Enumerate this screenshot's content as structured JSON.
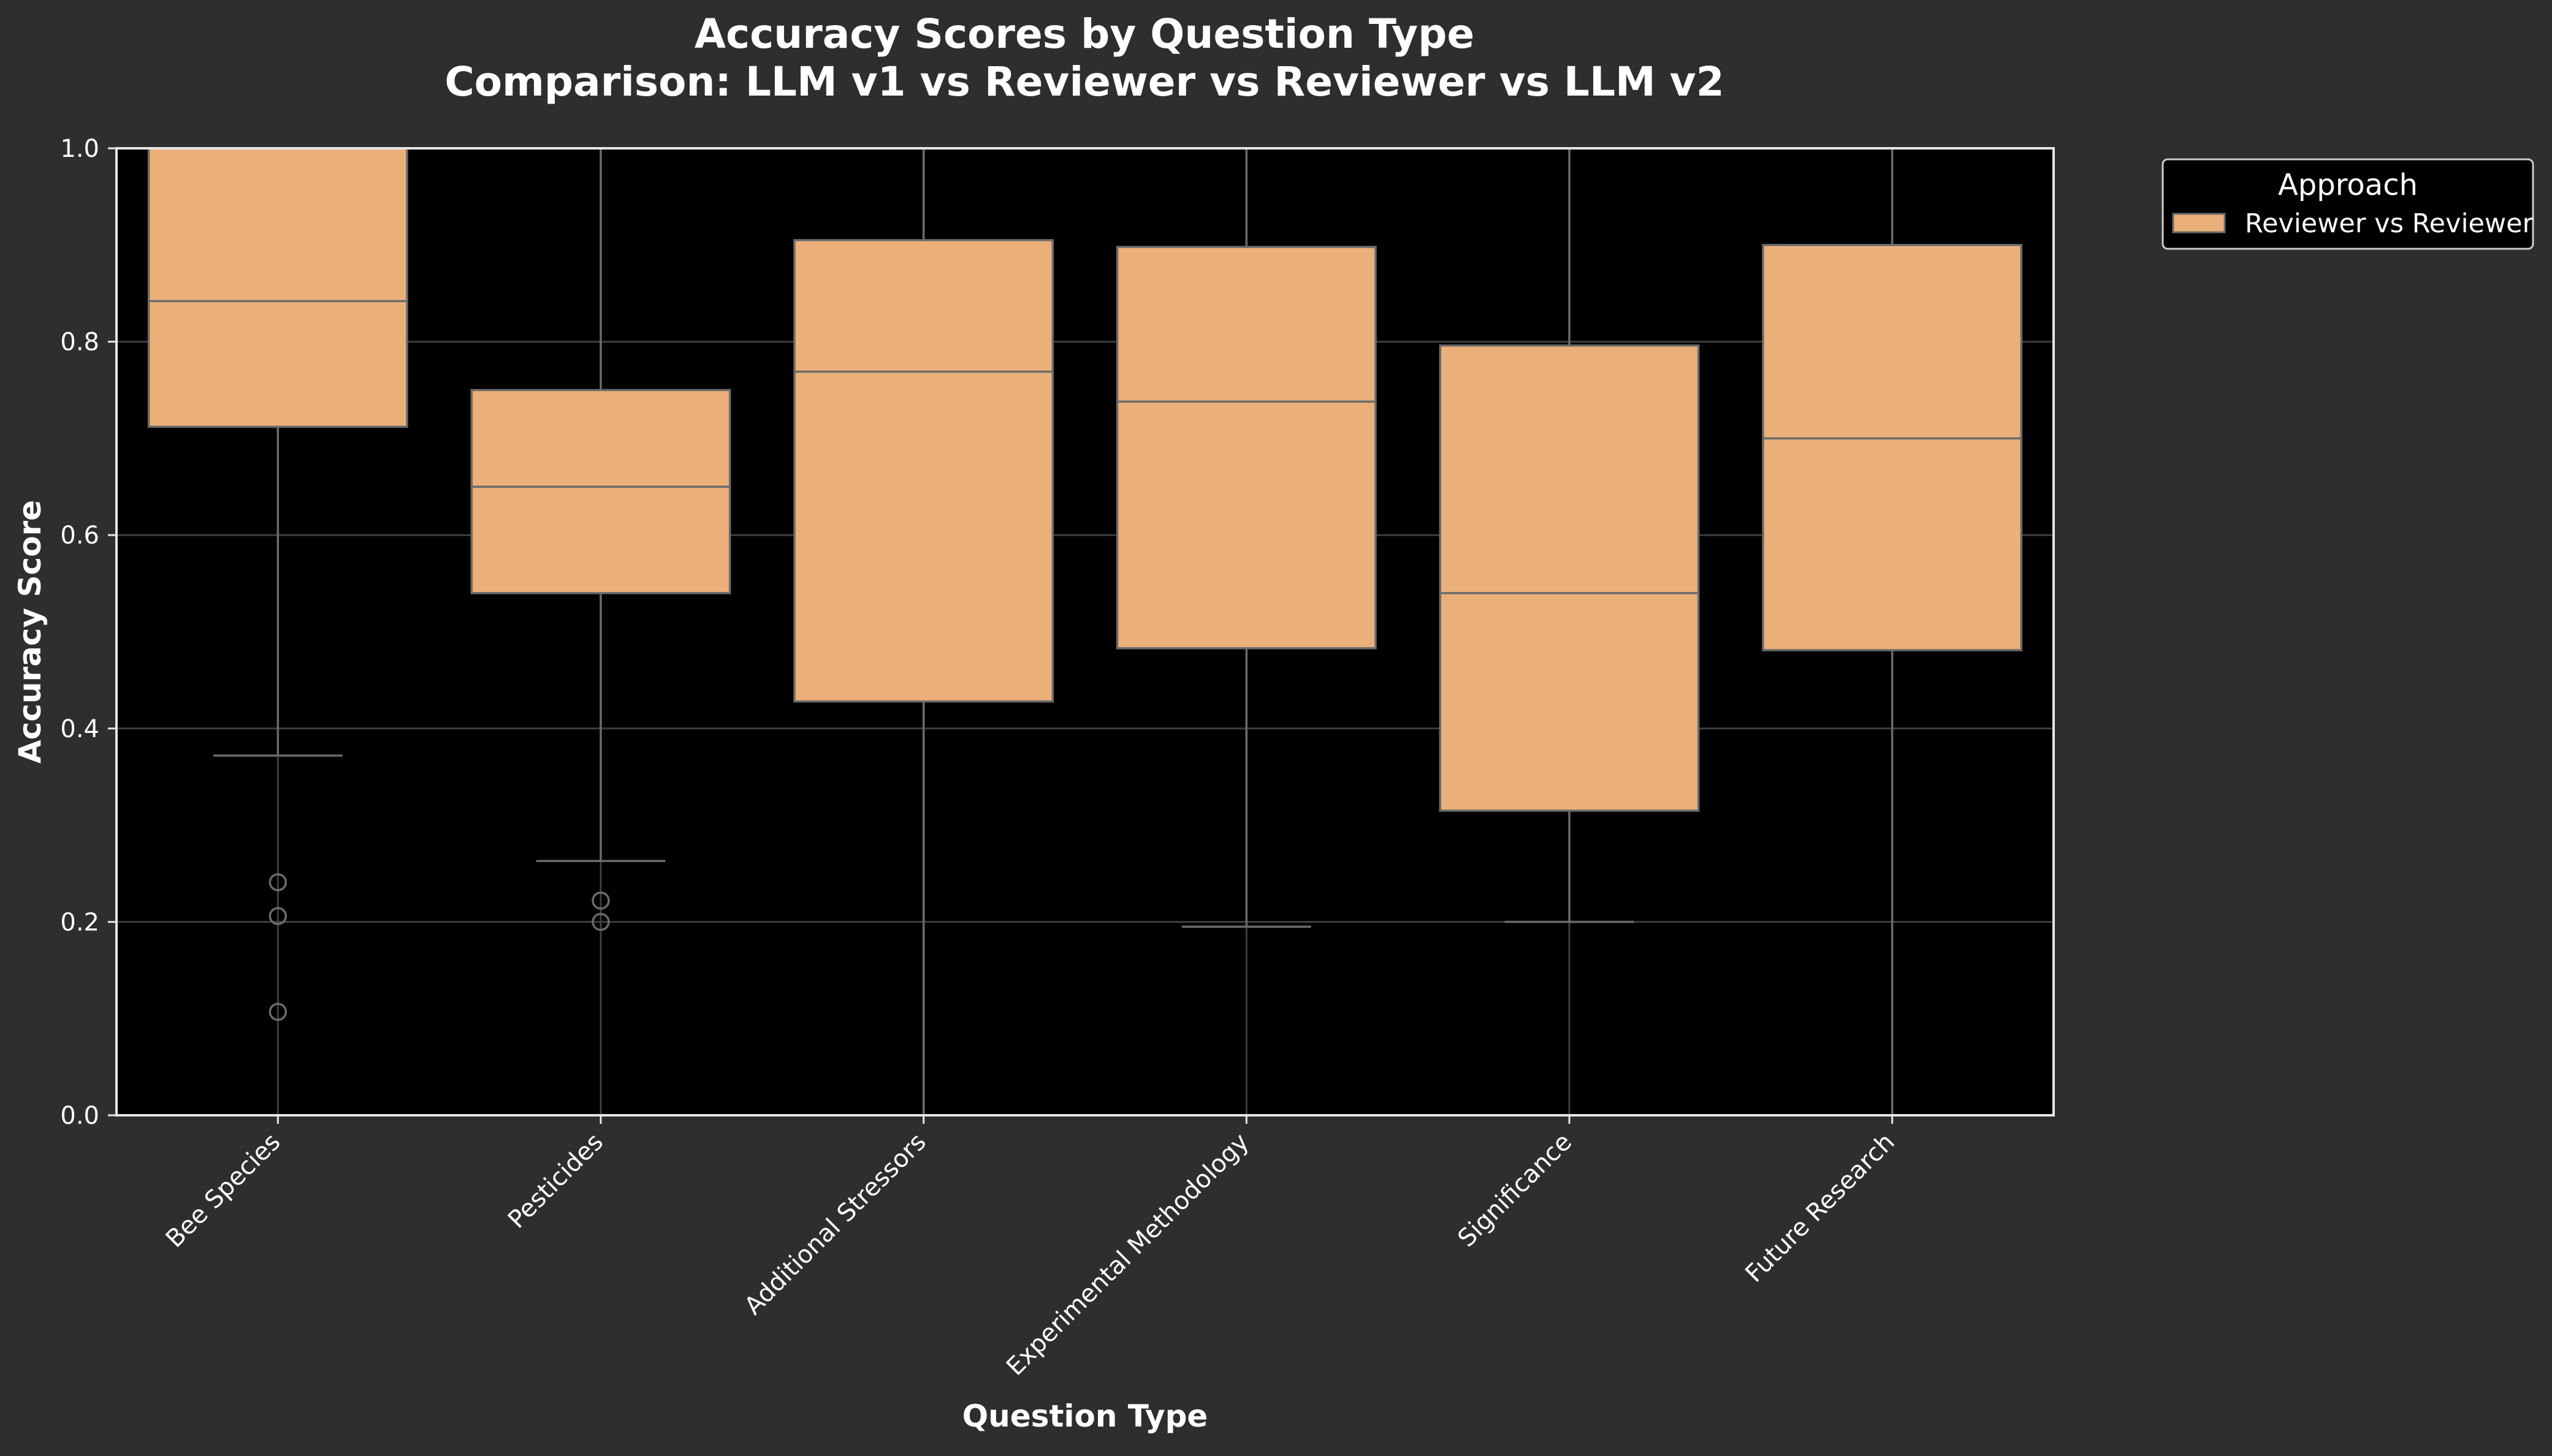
{
  "colors": {
    "background": "#2e2e2e",
    "plot_background": "#000000",
    "box_fill": "#ebb07a",
    "box_edge": "#6b6b6b",
    "text": "#ffffff",
    "grid": "#3e3e3e",
    "axis": "#e6e6e6"
  },
  "chart_data": {
    "type": "box",
    "title": "Accuracy Scores by Question Type",
    "subtitle": "Comparison: LLM v1 vs Reviewer vs Reviewer vs LLM v2",
    "xlabel": "Question Type",
    "ylabel": "Accuracy Score",
    "ylim": [
      0,
      1.0
    ],
    "yticks": [
      "0.0",
      "0.2",
      "0.4",
      "0.6",
      "0.8",
      "1.0"
    ],
    "grid": true,
    "legend": {
      "title": "Approach",
      "placement": "outside-top-right",
      "entries": [
        "Reviewer vs Reviewer"
      ]
    },
    "categories": [
      "Bee Species",
      "Pesticides",
      "Additional Stressors",
      "Experimental Methodology",
      "Significance",
      "Future Research"
    ],
    "series": [
      {
        "name": "Reviewer vs Reviewer",
        "boxes": [
          {
            "whisker_low": 0.372,
            "q1": 0.712,
            "median": 0.842,
            "q3": 1.0,
            "whisker_high": 1.0,
            "outliers": [
              0.241,
              0.206,
              0.107
            ]
          },
          {
            "whisker_low": 0.263,
            "q1": 0.54,
            "median": 0.65,
            "q3": 0.75,
            "whisker_high": 1.0,
            "outliers": [
              0.222,
              0.2
            ]
          },
          {
            "whisker_low": 0.0,
            "q1": 0.428,
            "median": 0.769,
            "q3": 0.905,
            "whisker_high": 1.0,
            "outliers": []
          },
          {
            "whisker_low": 0.195,
            "q1": 0.483,
            "median": 0.738,
            "q3": 0.898,
            "whisker_high": 1.0,
            "outliers": []
          },
          {
            "whisker_low": 0.2,
            "q1": 0.315,
            "median": 0.54,
            "q3": 0.796,
            "whisker_high": 1.0,
            "outliers": []
          },
          {
            "whisker_low": 0.0,
            "q1": 0.481,
            "median": 0.7,
            "q3": 0.9,
            "whisker_high": 1.0,
            "outliers": []
          }
        ]
      }
    ]
  }
}
